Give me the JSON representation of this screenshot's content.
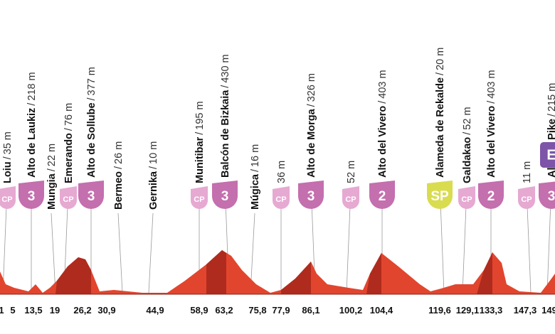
{
  "waypoints": [
    {
      "name": "Loiu",
      "altitude": "35 m",
      "badge": "CP"
    },
    {
      "name": "Alto de Laukiz",
      "altitude": "218 m",
      "badge": "3"
    },
    {
      "name": "Mungia",
      "altitude": "22 m"
    },
    {
      "name": "Emerando",
      "altitude": "76 m",
      "badge": "CP"
    },
    {
      "name": "Alto de Sollube",
      "altitude": "377 m",
      "badge": "3"
    },
    {
      "name": "Bermeo",
      "altitude": "26 m"
    },
    {
      "name": "Gernika",
      "altitude": "10 m"
    },
    {
      "name": "Munitibar",
      "altitude": "195 m",
      "badge": "CP"
    },
    {
      "name": "Balcón de Bizkaia",
      "altitude": "430 m",
      "badge": "3"
    },
    {
      "name": "Múgica",
      "altitude": "16 m"
    },
    {
      "altitude": "36 m",
      "badge": "CP"
    },
    {
      "name": "Alto de Morga",
      "altitude": "326 m",
      "badge": "3"
    },
    {
      "altitude": "52 m",
      "badge": "CP"
    },
    {
      "name": "Alto del Vivero",
      "altitude": "403 m",
      "badge": "2"
    },
    {
      "name": "Alameda de Rekalde",
      "altitude": "20 m",
      "badge": "SP"
    },
    {
      "name": "Galdakao",
      "altitude": "52 m",
      "badge": "CP"
    },
    {
      "name": "Alto del Vivero",
      "altitude": "403 m",
      "badge": "2"
    },
    {
      "altitude": "11 m",
      "badge": "CP"
    },
    {
      "name": "Alto de Pike",
      "altitude": "215 m",
      "badge": "3",
      "tag": "E"
    }
  ],
  "km_markers": [
    "1",
    "5",
    "13,5",
    "19",
    "26,2",
    "30,9",
    "44,9",
    "58,9",
    "63,2",
    "75,8",
    "77,9",
    "86,1",
    "100,2",
    "104,4",
    "119,6",
    "129,1",
    "133,3",
    "147,3",
    "149"
  ]
}
